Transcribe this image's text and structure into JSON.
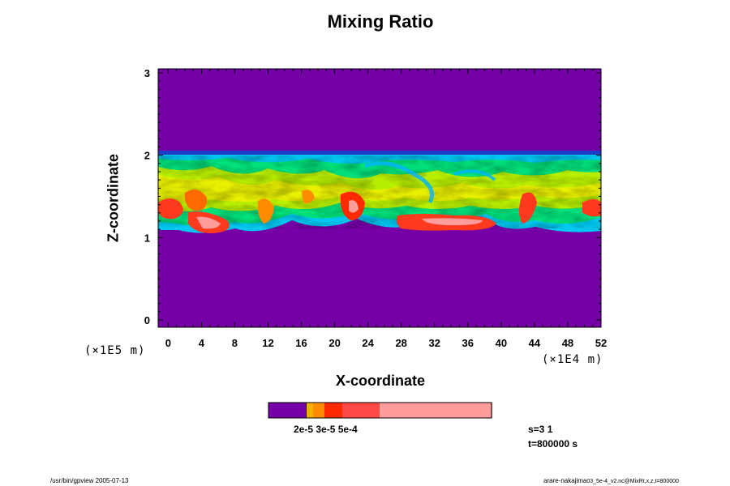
{
  "chart_data": {
    "type": "heatmap",
    "title": "Mixing Ratio",
    "xlabel": "X-coordinate",
    "ylabel": "Z-coordinate",
    "x_scale_label": "(×1E4 m)",
    "y_scale_label": "(×1E5 m)",
    "x_ticks": [
      "0",
      "4",
      "8",
      "12",
      "16",
      "20",
      "24",
      "28",
      "32",
      "36",
      "40",
      "44",
      "48",
      "52"
    ],
    "y_ticks": [
      "0",
      "1",
      "2",
      "3"
    ],
    "xlim": [
      -1.2,
      52
    ],
    "ylim": [
      -0.09,
      3.05
    ],
    "colorbar": {
      "labels_overprinted": "2e-5 3e-5 5e-4",
      "colors": [
        "#7500a6",
        "#f5b000",
        "#ff8c00",
        "#ff2a00",
        "#ff4a48",
        "#ff9c9c"
      ]
    },
    "layers": {
      "background": "#7500a6",
      "cloud_layer_top": 2.0,
      "cloud_layer_bottom": 1.1
    }
  },
  "annotations": {
    "s": "s=3 1",
    "t": "t=800000 s"
  },
  "footer": {
    "left": "/usr/bin/gpview 2005-07-13",
    "right_main": "arare-nakajima",
    "right_small": "03_5e-4_v2.nc@MixRt,x,z,t=800000"
  }
}
